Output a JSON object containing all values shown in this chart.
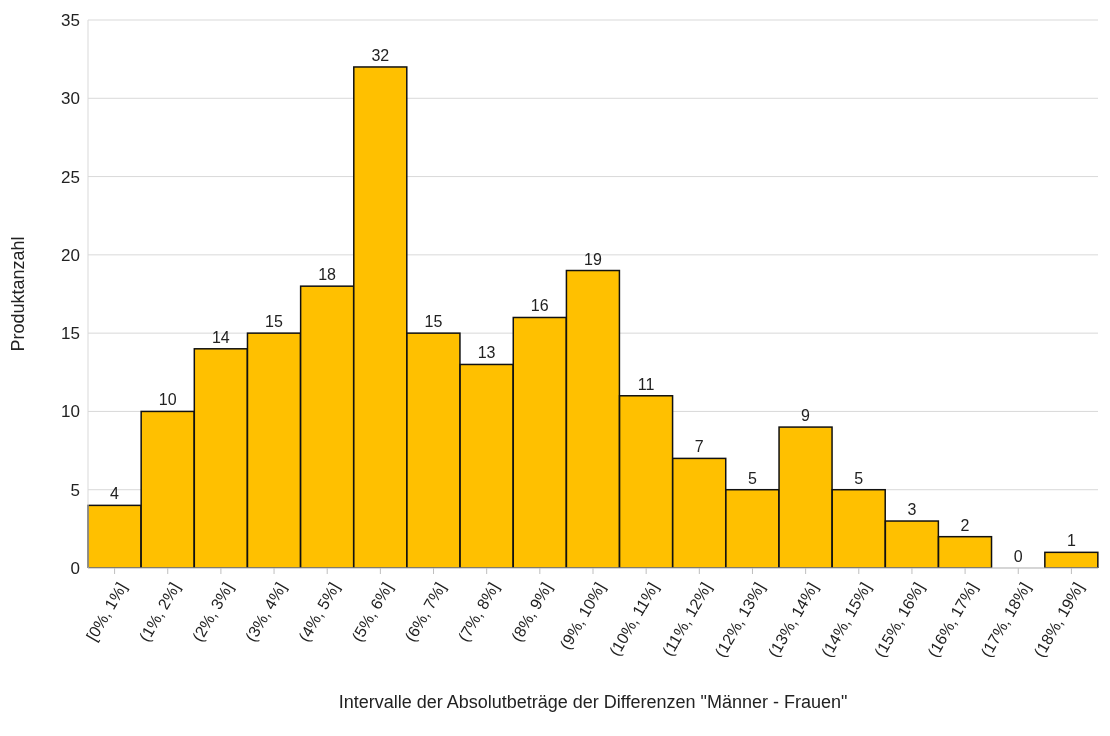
{
  "chart_data": {
    "type": "bar",
    "ylabel": "Produktanzahl",
    "xlabel": "Intervalle der Absolutbeträge der Differenzen \"Männer - Frauen\"",
    "categories": [
      "[0%, 1%]",
      "(1%, 2%]",
      "(2%, 3%]",
      "(3%, 4%]",
      "(4%, 5%]",
      "(5%, 6%]",
      "(6%, 7%]",
      "(7%, 8%]",
      "(8%, 9%]",
      "(9%, 10%]",
      "(10%, 11%]",
      "(11%, 12%]",
      "(12%, 13%]",
      "(13%, 14%]",
      "(14%, 15%]",
      "(15%, 16%]",
      "(16%, 17%]",
      "(17%, 18%]",
      "(18%, 19%]"
    ],
    "values": [
      4,
      10,
      14,
      15,
      18,
      32,
      15,
      13,
      16,
      19,
      11,
      7,
      5,
      9,
      5,
      3,
      2,
      0,
      1
    ],
    "color": "#ffc000",
    "ylim": [
      0,
      35
    ],
    "yticks": [
      0,
      5,
      10,
      15,
      20,
      25,
      30,
      35
    ],
    "grid": "y",
    "data_labels": true
  }
}
